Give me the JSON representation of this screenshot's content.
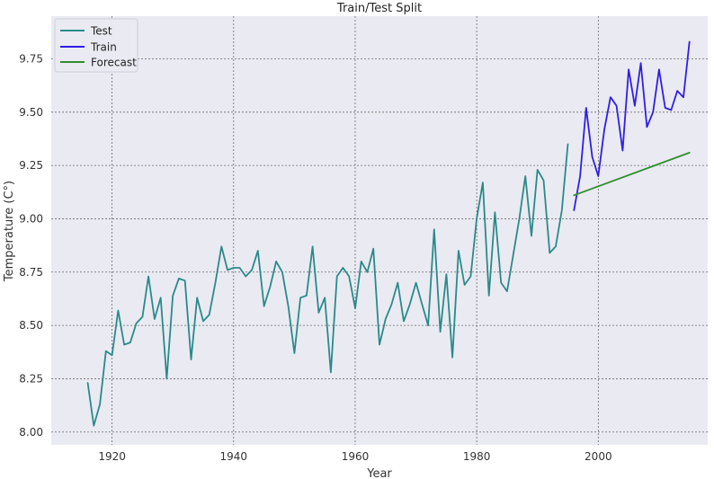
{
  "chart_data": {
    "type": "line",
    "title": "Train/Test Split",
    "xlabel": "Year",
    "ylabel": "Temperature (C°)",
    "xlim": [
      1910,
      2018
    ],
    "ylim": [
      7.94,
      9.95
    ],
    "xticks": [
      1920,
      1940,
      1960,
      1980,
      2000
    ],
    "yticks": [
      8.0,
      8.25,
      8.5,
      8.75,
      9.0,
      9.25,
      9.5,
      9.75
    ],
    "grid": true,
    "background": "#eaeaf2",
    "legend": {
      "placement": "top-left"
    },
    "series": [
      {
        "name": "Test",
        "color": "#2a8a8a",
        "x": [
          1916,
          1917,
          1918,
          1919,
          1920,
          1921,
          1922,
          1923,
          1924,
          1925,
          1926,
          1927,
          1928,
          1929,
          1930,
          1931,
          1932,
          1933,
          1934,
          1935,
          1936,
          1937,
          1938,
          1939,
          1940,
          1941,
          1942,
          1943,
          1944,
          1945,
          1946,
          1947,
          1948,
          1949,
          1950,
          1951,
          1952,
          1953,
          1954,
          1955,
          1956,
          1957,
          1958,
          1959,
          1960,
          1961,
          1962,
          1963,
          1964,
          1965,
          1966,
          1967,
          1968,
          1969,
          1970,
          1971,
          1972,
          1973,
          1974,
          1975,
          1976,
          1977,
          1978,
          1979,
          1980,
          1981,
          1982,
          1983,
          1984,
          1985,
          1986,
          1987,
          1988,
          1989,
          1990,
          1991,
          1992,
          1993,
          1994,
          1995
        ],
        "y": [
          8.23,
          8.03,
          8.13,
          8.38,
          8.36,
          8.57,
          8.41,
          8.42,
          8.51,
          8.54,
          8.73,
          8.53,
          8.63,
          8.25,
          8.64,
          8.72,
          8.71,
          8.34,
          8.63,
          8.52,
          8.55,
          8.7,
          8.87,
          8.76,
          8.77,
          8.77,
          8.73,
          8.76,
          8.85,
          8.59,
          8.68,
          8.8,
          8.75,
          8.59,
          8.37,
          8.63,
          8.64,
          8.87,
          8.56,
          8.63,
          8.28,
          8.73,
          8.77,
          8.73,
          8.58,
          8.8,
          8.75,
          8.86,
          8.41,
          8.53,
          8.6,
          8.7,
          8.52,
          8.6,
          8.7,
          8.6,
          8.5,
          8.95,
          8.47,
          8.74,
          8.35,
          8.85,
          8.69,
          8.73,
          9.0,
          9.17,
          8.64,
          9.03,
          8.7,
          8.66,
          8.83,
          9.0,
          9.2,
          8.92,
          9.23,
          9.18,
          8.84,
          8.87,
          9.04,
          9.35
        ]
      },
      {
        "name": "Train",
        "color": "#2f1ee6",
        "x": [
          1996,
          1997,
          1998,
          1999,
          2000,
          2001,
          2002,
          2003,
          2004,
          2005,
          2006,
          2007,
          2008,
          2009,
          2010,
          2011,
          2012,
          2013,
          2014,
          2015
        ],
        "y": [
          9.04,
          9.2,
          9.52,
          9.29,
          9.2,
          9.42,
          9.57,
          9.53,
          9.32,
          9.7,
          9.53,
          9.73,
          9.43,
          9.5,
          9.7,
          9.52,
          9.51,
          9.6,
          9.57,
          9.83
        ]
      },
      {
        "name": "Forecast",
        "color": "#2f8f2f",
        "x": [
          1996,
          2015
        ],
        "y": [
          9.11,
          9.31
        ]
      }
    ]
  }
}
